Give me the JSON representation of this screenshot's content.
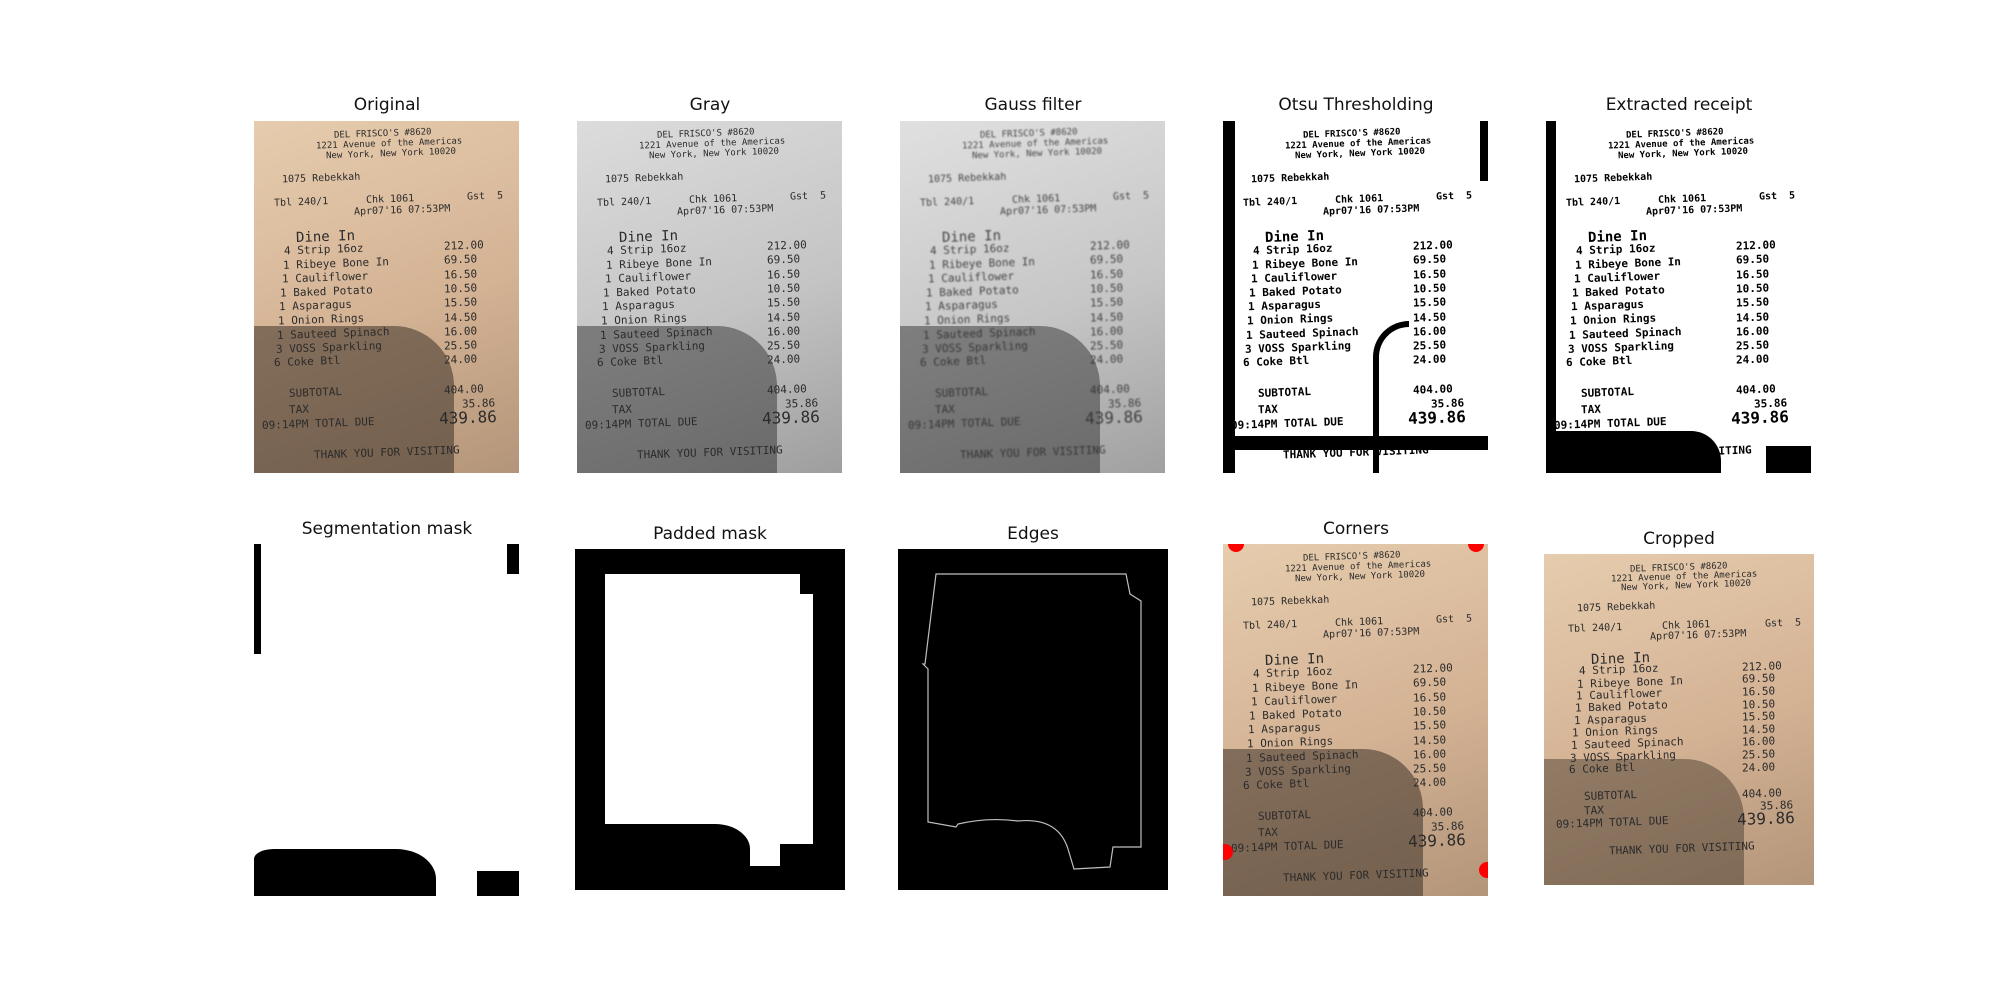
{
  "panels": [
    {
      "title": "Original"
    },
    {
      "title": "Gray"
    },
    {
      "title": "Gauss filter"
    },
    {
      "title": "Otsu Thresholding"
    },
    {
      "title": "Extracted receipt"
    },
    {
      "title": "Segmentation mask"
    },
    {
      "title": "Padded mask"
    },
    {
      "title": "Edges"
    },
    {
      "title": "Corners"
    },
    {
      "title": "Cropped"
    }
  ],
  "receipt": {
    "header1": "DEL FRISCO'S #8620",
    "header2": "1221 Avenue of the Americas",
    "header3": "New York, New York 10020",
    "server": "1075 Rebekkah",
    "table": "Tbl 240/1",
    "check": "Chk 1061",
    "guests": "Gst  5",
    "datetime": "Apr07'16 07:53PM",
    "section": "Dine In",
    "items": [
      {
        "name": "4 Strip 16oz",
        "price": "212.00"
      },
      {
        "name": "1 Ribeye Bone In",
        "price": "69.50"
      },
      {
        "name": "1 Cauliflower",
        "price": "16.50"
      },
      {
        "name": "1 Baked Potato",
        "price": "10.50"
      },
      {
        "name": "1 Asparagus",
        "price": "15.50"
      },
      {
        "name": "1 Onion Rings",
        "price": "14.50"
      },
      {
        "name": "1 Sauteed Spinach",
        "price": "16.00"
      },
      {
        "name": "3 VOSS Sparkling",
        "price": "25.50"
      },
      {
        "name": "6 Coke Btl",
        "price": "24.00"
      }
    ],
    "subtotal_label": "SUBTOTAL",
    "subtotal": "404.00",
    "tax_label": "TAX",
    "tax": "35.86",
    "total_label": "09:14PM TOTAL DUE",
    "total": "439.86",
    "footer": "THANK YOU FOR VISITING"
  },
  "colors": {
    "receipt_paper": "#d7b99d",
    "gray_paper": "#bdbdbd",
    "corner_marker": "#ff0000"
  }
}
